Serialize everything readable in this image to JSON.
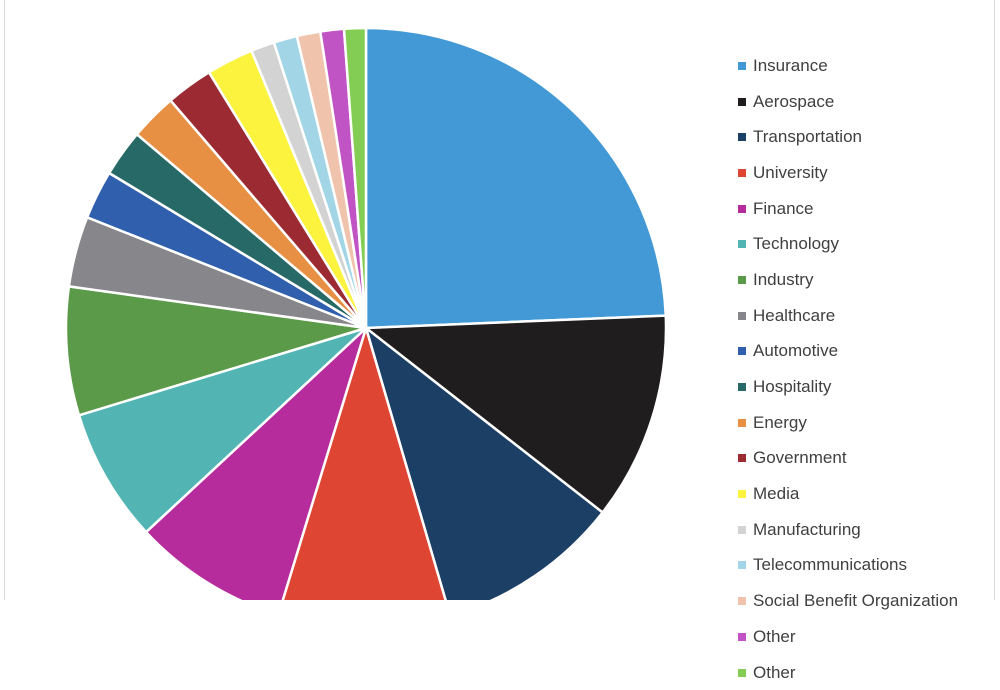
{
  "chart_data": {
    "type": "pie",
    "title": "",
    "legend_position": "right",
    "slices": [
      {
        "label": "Insurance",
        "value": 25.0,
        "color": "#4299d6"
      },
      {
        "label": "Aerospace",
        "value": 11.5,
        "color": "#1f1d1d"
      },
      {
        "label": "Transportation",
        "value": 10.2,
        "color": "#1c3f66"
      },
      {
        "label": "University",
        "value": 9.5,
        "color": "#de4533"
      },
      {
        "label": "Finance",
        "value": 8.6,
        "color": "#b72c9c"
      },
      {
        "label": "Technology",
        "value": 7.4,
        "color": "#52b5b4"
      },
      {
        "label": "Industry",
        "value": 7.1,
        "color": "#5a9a48"
      },
      {
        "label": "Healthcare",
        "value": 3.9,
        "color": "#87878b"
      },
      {
        "label": "Automotive",
        "value": 2.7,
        "color": "#2f5fad"
      },
      {
        "label": "Hospitality",
        "value": 2.6,
        "color": "#276966"
      },
      {
        "label": "Energy",
        "value": 2.6,
        "color": "#e78f43"
      },
      {
        "label": "Government",
        "value": 2.6,
        "color": "#9c2a32"
      },
      {
        "label": "Media",
        "value": 2.6,
        "color": "#fbf33e"
      },
      {
        "label": "Manufacturing",
        "value": 1.3,
        "color": "#d3d3d3"
      },
      {
        "label": "Telecommunications",
        "value": 1.3,
        "color": "#a2d6e6"
      },
      {
        "label": "Social Benefit Organization",
        "value": 1.3,
        "color": "#f0c3ad"
      },
      {
        "label": "Other",
        "value": 1.3,
        "color": "#c054c4"
      },
      {
        "label": "Other",
        "value": 1.2,
        "color": "#84cd55"
      }
    ]
  }
}
